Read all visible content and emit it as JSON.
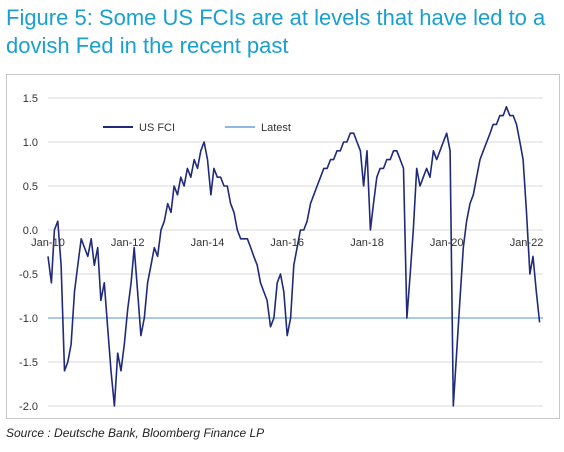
{
  "title": "Figure 5: Some US FCIs are at levels that have led to a dovish Fed in the recent past",
  "source": "Source : Deutsche Bank, Bloomberg Finance LP",
  "colors": {
    "title": "#1aa0d0",
    "series": "#1f2a7a",
    "latest": "#8fb7e0",
    "grid": "#d9d9d9"
  },
  "chart_data": {
    "type": "line",
    "title": "",
    "xlabel": "",
    "ylabel": "",
    "xlim": [
      "2010-01-01",
      "2022-06-01"
    ],
    "ylim": [
      -2.0,
      1.5
    ],
    "y_ticks": [
      "1.5",
      "1.0",
      "0.5",
      "0.0",
      "-0.5",
      "-1.0",
      "-1.5",
      "-2.0"
    ],
    "x_ticks": [
      "Jan-10",
      "Jan-12",
      "Jan-14",
      "Jan-16",
      "Jan-18",
      "Jan-20",
      "Jan-22"
    ],
    "grid": "horizontal",
    "legend": "top-left",
    "legend_entries": [
      "US FCI",
      "Latest"
    ],
    "series": [
      {
        "name": "US FCI",
        "x": [
          "2010-01",
          "2010-02",
          "2010-03",
          "2010-04",
          "2010-05",
          "2010-06",
          "2010-07",
          "2010-08",
          "2010-09",
          "2010-10",
          "2010-11",
          "2010-12",
          "2011-01",
          "2011-02",
          "2011-03",
          "2011-04",
          "2011-05",
          "2011-06",
          "2011-07",
          "2011-08",
          "2011-09",
          "2011-10",
          "2011-11",
          "2011-12",
          "2012-01",
          "2012-02",
          "2012-03",
          "2012-04",
          "2012-05",
          "2012-06",
          "2012-07",
          "2012-08",
          "2012-09",
          "2012-10",
          "2012-11",
          "2012-12",
          "2013-01",
          "2013-02",
          "2013-03",
          "2013-04",
          "2013-05",
          "2013-06",
          "2013-07",
          "2013-08",
          "2013-09",
          "2013-10",
          "2013-11",
          "2013-12",
          "2014-01",
          "2014-02",
          "2014-03",
          "2014-04",
          "2014-05",
          "2014-06",
          "2014-07",
          "2014-08",
          "2014-09",
          "2014-10",
          "2014-11",
          "2014-12",
          "2015-01",
          "2015-02",
          "2015-03",
          "2015-04",
          "2015-05",
          "2015-06",
          "2015-07",
          "2015-08",
          "2015-09",
          "2015-10",
          "2015-11",
          "2015-12",
          "2016-01",
          "2016-02",
          "2016-03",
          "2016-04",
          "2016-05",
          "2016-06",
          "2016-07",
          "2016-08",
          "2016-09",
          "2016-10",
          "2016-11",
          "2016-12",
          "2017-01",
          "2017-02",
          "2017-03",
          "2017-04",
          "2017-05",
          "2017-06",
          "2017-07",
          "2017-08",
          "2017-09",
          "2017-10",
          "2017-11",
          "2017-12",
          "2018-01",
          "2018-02",
          "2018-03",
          "2018-04",
          "2018-05",
          "2018-06",
          "2018-07",
          "2018-08",
          "2018-09",
          "2018-10",
          "2018-11",
          "2018-12",
          "2019-01",
          "2019-02",
          "2019-03",
          "2019-04",
          "2019-05",
          "2019-06",
          "2019-07",
          "2019-08",
          "2019-09",
          "2019-10",
          "2019-11",
          "2019-12",
          "2020-01",
          "2020-02",
          "2020-03",
          "2020-04",
          "2020-05",
          "2020-06",
          "2020-07",
          "2020-08",
          "2020-09",
          "2020-10",
          "2020-11",
          "2020-12",
          "2021-01",
          "2021-02",
          "2021-03",
          "2021-04",
          "2021-05",
          "2021-06",
          "2021-07",
          "2021-08",
          "2021-09",
          "2021-10",
          "2021-11",
          "2021-12",
          "2022-01",
          "2022-02",
          "2022-03",
          "2022-04",
          "2022-05"
        ],
        "y": [
          -0.3,
          -0.6,
          0.0,
          0.1,
          -0.4,
          -1.6,
          -1.5,
          -1.3,
          -0.7,
          -0.4,
          -0.1,
          -0.2,
          -0.3,
          -0.1,
          -0.4,
          -0.2,
          -0.8,
          -0.6,
          -1.1,
          -1.6,
          -2.0,
          -1.4,
          -1.6,
          -1.3,
          -0.9,
          -0.6,
          -0.2,
          -0.7,
          -1.2,
          -1.0,
          -0.6,
          -0.4,
          -0.2,
          -0.3,
          0.0,
          0.1,
          0.3,
          0.2,
          0.5,
          0.4,
          0.6,
          0.5,
          0.7,
          0.6,
          0.8,
          0.7,
          0.9,
          1.0,
          0.8,
          0.4,
          0.7,
          0.6,
          0.6,
          0.5,
          0.5,
          0.3,
          0.2,
          0.0,
          -0.1,
          -0.1,
          -0.1,
          -0.2,
          -0.3,
          -0.4,
          -0.6,
          -0.7,
          -0.8,
          -1.1,
          -1.0,
          -0.6,
          -0.5,
          -0.7,
          -1.2,
          -1.0,
          -0.4,
          -0.2,
          0.0,
          0.0,
          0.1,
          0.3,
          0.4,
          0.5,
          0.6,
          0.7,
          0.7,
          0.8,
          0.8,
          0.9,
          0.9,
          1.0,
          1.0,
          1.1,
          1.1,
          1.0,
          0.9,
          0.5,
          0.9,
          0.0,
          0.3,
          0.6,
          0.7,
          0.7,
          0.8,
          0.8,
          0.9,
          0.9,
          0.8,
          0.7,
          -1.0,
          -0.5,
          0.0,
          0.7,
          0.5,
          0.6,
          0.7,
          0.6,
          0.9,
          0.8,
          0.9,
          1.0,
          1.1,
          0.9,
          -2.0,
          -1.4,
          -0.8,
          -0.2,
          0.1,
          0.3,
          0.4,
          0.6,
          0.8,
          0.9,
          1.0,
          1.1,
          1.2,
          1.2,
          1.3,
          1.3,
          1.4,
          1.3,
          1.3,
          1.2,
          1.0,
          0.8,
          0.2,
          -0.5,
          -0.3,
          -0.7,
          -1.05
        ]
      },
      {
        "name": "Latest",
        "y": -1.0
      }
    ]
  }
}
